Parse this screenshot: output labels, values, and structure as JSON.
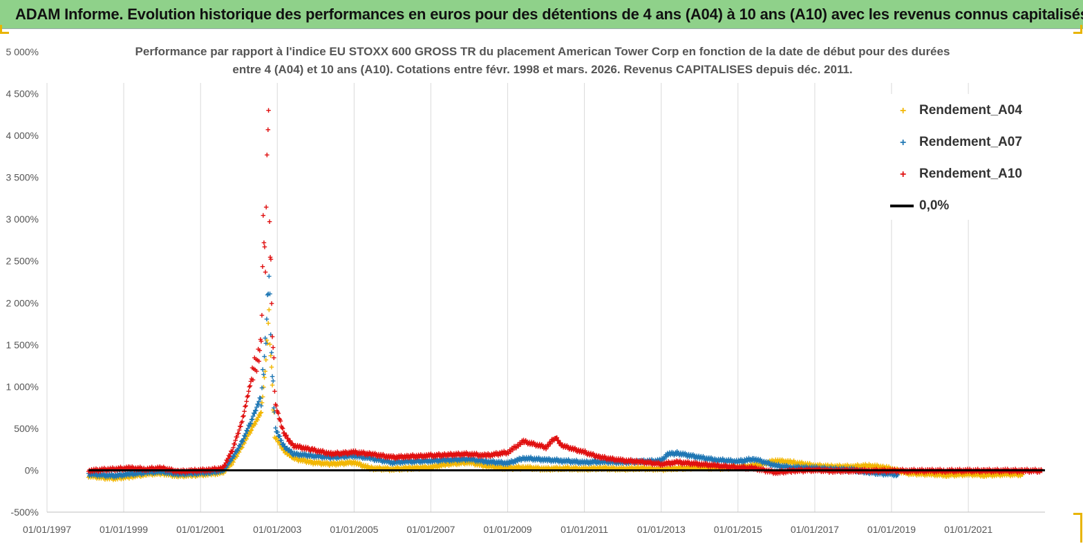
{
  "banner": {
    "title": "ADAM Informe. Evolution historique des performances en euros pour des détentions de 4 ans (A04) à 10 ans (A10) avec les revenus connus capitalisés"
  },
  "chart_data": {
    "type": "scatter",
    "title": "Performance par rapport à l'indice EU STOXX 600 GROSS TR  du placement American Tower Corp en fonction de la date de début pour des durées entre 4 (A04) et 10 ans (A10). Cotations entre févr. 1998 et mars. 2026. Revenus CAPITALISES depuis déc. 2011.",
    "title_line1": "Performance par rapport à l'indice EU STOXX 600 GROSS TR  du placement American Tower Corp en fonction de la date de début pour des durées",
    "title_line2": "entre 4 (A04) et 10 ans (A10). Cotations entre févr. 1998 et mars. 2026. Revenus CAPITALISES depuis déc. 2011.",
    "xlabel": "",
    "ylabel": "",
    "xlim": [
      "1997-01-01",
      "2022-12-31"
    ],
    "ylim": [
      -500,
      5000
    ],
    "x_ticks": [
      "01/01/1997",
      "01/01/1999",
      "01/01/2001",
      "01/01/2003",
      "01/01/2005",
      "01/01/2007",
      "01/01/2009",
      "01/01/2011",
      "01/01/2013",
      "01/01/2015",
      "01/01/2017",
      "01/01/2019",
      "01/01/2021"
    ],
    "y_ticks": [
      -500,
      0,
      500,
      1000,
      1500,
      2000,
      2500,
      3000,
      3500,
      4000,
      4500,
      5000
    ],
    "y_tick_labels": [
      "-500%",
      "0%",
      "500%",
      "1 000%",
      "1 500%",
      "2 000%",
      "2 500%",
      "3 000%",
      "3 500%",
      "4 000%",
      "4 500%",
      "5 000%"
    ],
    "grid": "vertical",
    "legend_position": "top-right",
    "series": [
      {
        "name": "Rendement_A04",
        "color": "#f2b705",
        "marker": "plus",
        "points": [
          [
            "1998-02-01",
            -60
          ],
          [
            "1998-06-01",
            -80
          ],
          [
            "1998-10-01",
            -90
          ],
          [
            "1999-03-01",
            -70
          ],
          [
            "1999-08-01",
            -40
          ],
          [
            "2000-01-01",
            -30
          ],
          [
            "2000-06-01",
            -60
          ],
          [
            "2000-11-01",
            -50
          ],
          [
            "2001-04-01",
            -40
          ],
          [
            "2001-08-01",
            -20
          ],
          [
            "2001-11-01",
            100
          ],
          [
            "2002-02-01",
            300
          ],
          [
            "2002-05-01",
            500
          ],
          [
            "2002-08-01",
            700
          ],
          [
            "2002-09-15",
            1300
          ],
          [
            "2002-10-15",
            1850
          ],
          [
            "2002-11-15",
            900
          ],
          [
            "2002-12-15",
            400
          ],
          [
            "2003-03-01",
            250
          ],
          [
            "2003-06-01",
            150
          ],
          [
            "2003-12-01",
            100
          ],
          [
            "2004-06-01",
            80
          ],
          [
            "2005-01-01",
            100
          ],
          [
            "2005-06-01",
            30
          ],
          [
            "2006-01-01",
            20
          ],
          [
            "2006-06-01",
            30
          ],
          [
            "2007-01-01",
            40
          ],
          [
            "2007-06-01",
            80
          ],
          [
            "2008-01-01",
            100
          ],
          [
            "2008-06-01",
            60
          ],
          [
            "2009-01-01",
            30
          ],
          [
            "2009-06-01",
            40
          ],
          [
            "2010-01-01",
            20
          ],
          [
            "2010-06-01",
            30
          ],
          [
            "2011-01-01",
            20
          ],
          [
            "2011-06-01",
            30
          ],
          [
            "2012-01-01",
            20
          ],
          [
            "2012-06-01",
            30
          ],
          [
            "2013-01-01",
            20
          ],
          [
            "2013-06-01",
            30
          ],
          [
            "2014-01-01",
            40
          ],
          [
            "2014-06-01",
            30
          ],
          [
            "2015-01-01",
            40
          ],
          [
            "2015-06-01",
            60
          ],
          [
            "2016-01-01",
            120
          ],
          [
            "2016-06-01",
            100
          ],
          [
            "2017-01-01",
            60
          ],
          [
            "2017-06-01",
            50
          ],
          [
            "2018-01-01",
            50
          ],
          [
            "2018-06-01",
            60
          ],
          [
            "2018-11-01",
            40
          ],
          [
            "2019-06-01",
            -30
          ],
          [
            "2020-01-01",
            -40
          ],
          [
            "2020-06-01",
            -50
          ],
          [
            "2021-01-01",
            -40
          ],
          [
            "2021-06-01",
            -50
          ],
          [
            "2022-01-01",
            -40
          ],
          [
            "2022-06-01",
            -45
          ]
        ]
      },
      {
        "name": "Rendement_A07",
        "color": "#1f77b4",
        "marker": "plus",
        "points": [
          [
            "1998-02-01",
            -40
          ],
          [
            "1998-06-01",
            -50
          ],
          [
            "1998-10-01",
            -60
          ],
          [
            "1999-03-01",
            -40
          ],
          [
            "1999-08-01",
            -20
          ],
          [
            "2000-01-01",
            -10
          ],
          [
            "2000-06-01",
            -40
          ],
          [
            "2000-11-01",
            -30
          ],
          [
            "2001-04-01",
            -20
          ],
          [
            "2001-08-01",
            0
          ],
          [
            "2001-11-01",
            150
          ],
          [
            "2002-02-01",
            350
          ],
          [
            "2002-05-01",
            600
          ],
          [
            "2002-08-01",
            900
          ],
          [
            "2002-09-15",
            1600
          ],
          [
            "2002-10-15",
            2350
          ],
          [
            "2002-11-15",
            1100
          ],
          [
            "2002-12-15",
            500
          ],
          [
            "2003-03-01",
            300
          ],
          [
            "2003-06-01",
            200
          ],
          [
            "2003-12-01",
            180
          ],
          [
            "2004-06-01",
            160
          ],
          [
            "2005-01-01",
            180
          ],
          [
            "2005-06-01",
            150
          ],
          [
            "2006-01-01",
            100
          ],
          [
            "2006-06-01",
            110
          ],
          [
            "2007-01-01",
            120
          ],
          [
            "2007-06-01",
            130
          ],
          [
            "2008-01-01",
            140
          ],
          [
            "2008-06-01",
            110
          ],
          [
            "2009-01-01",
            90
          ],
          [
            "2009-06-01",
            150
          ],
          [
            "2010-01-01",
            130
          ],
          [
            "2010-06-01",
            120
          ],
          [
            "2011-01-01",
            100
          ],
          [
            "2011-06-01",
            110
          ],
          [
            "2012-01-01",
            100
          ],
          [
            "2012-06-01",
            110
          ],
          [
            "2013-01-01",
            120
          ],
          [
            "2013-03-01",
            200
          ],
          [
            "2013-06-01",
            210
          ],
          [
            "2014-01-01",
            160
          ],
          [
            "2014-06-01",
            130
          ],
          [
            "2015-01-01",
            110
          ],
          [
            "2015-06-01",
            140
          ],
          [
            "2016-01-01",
            60
          ],
          [
            "2016-06-01",
            40
          ],
          [
            "2017-01-01",
            30
          ],
          [
            "2017-06-01",
            20
          ],
          [
            "2018-01-01",
            10
          ],
          [
            "2018-06-01",
            -20
          ],
          [
            "2019-01-01",
            -40
          ],
          [
            "2019-03-01",
            -50
          ]
        ]
      },
      {
        "name": "Rendement_A10",
        "color": "#e01010",
        "marker": "plus",
        "points": [
          [
            "1998-02-01",
            0
          ],
          [
            "1998-06-01",
            10
          ],
          [
            "1998-10-01",
            20
          ],
          [
            "1999-03-01",
            30
          ],
          [
            "1999-08-01",
            20
          ],
          [
            "2000-01-01",
            30
          ],
          [
            "2000-06-01",
            -10
          ],
          [
            "2000-11-01",
            0
          ],
          [
            "2001-04-01",
            10
          ],
          [
            "2001-08-01",
            30
          ],
          [
            "2001-11-01",
            250
          ],
          [
            "2002-02-01",
            600
          ],
          [
            "2002-05-01",
            1100
          ],
          [
            "2002-08-01",
            1500
          ],
          [
            "2002-08-20",
            2950
          ],
          [
            "2002-09-10",
            2500
          ],
          [
            "2002-09-25",
            3850
          ],
          [
            "2002-10-05",
            4100
          ],
          [
            "2002-10-10",
            4280
          ],
          [
            "2002-10-20",
            2900
          ],
          [
            "2002-11-01",
            2400
          ],
          [
            "2002-11-15",
            1700
          ],
          [
            "2002-12-15",
            800
          ],
          [
            "2003-03-01",
            450
          ],
          [
            "2003-06-01",
            300
          ],
          [
            "2003-12-01",
            250
          ],
          [
            "2004-06-01",
            200
          ],
          [
            "2005-01-01",
            220
          ],
          [
            "2005-06-01",
            200
          ],
          [
            "2006-01-01",
            160
          ],
          [
            "2006-06-01",
            170
          ],
          [
            "2007-01-01",
            180
          ],
          [
            "2007-06-01",
            190
          ],
          [
            "2008-01-01",
            200
          ],
          [
            "2008-06-01",
            180
          ],
          [
            "2009-01-01",
            220
          ],
          [
            "2009-06-01",
            350
          ],
          [
            "2010-01-01",
            280
          ],
          [
            "2010-04-01",
            400
          ],
          [
            "2010-06-01",
            300
          ],
          [
            "2011-01-01",
            220
          ],
          [
            "2011-06-01",
            160
          ],
          [
            "2012-01-01",
            120
          ],
          [
            "2012-06-01",
            110
          ],
          [
            "2013-01-01",
            80
          ],
          [
            "2013-06-01",
            100
          ],
          [
            "2014-01-01",
            80
          ],
          [
            "2014-06-01",
            60
          ],
          [
            "2015-01-01",
            40
          ],
          [
            "2015-06-01",
            30
          ],
          [
            "2016-01-01",
            -20
          ],
          [
            "2016-06-01",
            0
          ],
          [
            "2017-01-01",
            10
          ],
          [
            "2017-06-01",
            0
          ],
          [
            "2018-01-01",
            0
          ],
          [
            "2018-06-01",
            0
          ],
          [
            "2019-01-01",
            0
          ],
          [
            "2019-06-01",
            0
          ],
          [
            "2020-01-01",
            0
          ],
          [
            "2020-06-01",
            0
          ],
          [
            "2021-01-01",
            0
          ],
          [
            "2021-06-01",
            0
          ],
          [
            "2022-01-01",
            0
          ],
          [
            "2022-06-01",
            0
          ],
          [
            "2022-12-01",
            0
          ]
        ]
      },
      {
        "name": "0,0%",
        "color": "#000000",
        "marker": "line",
        "points": [
          [
            "1998-02-01",
            0
          ],
          [
            "2022-12-31",
            0
          ]
        ]
      }
    ]
  }
}
